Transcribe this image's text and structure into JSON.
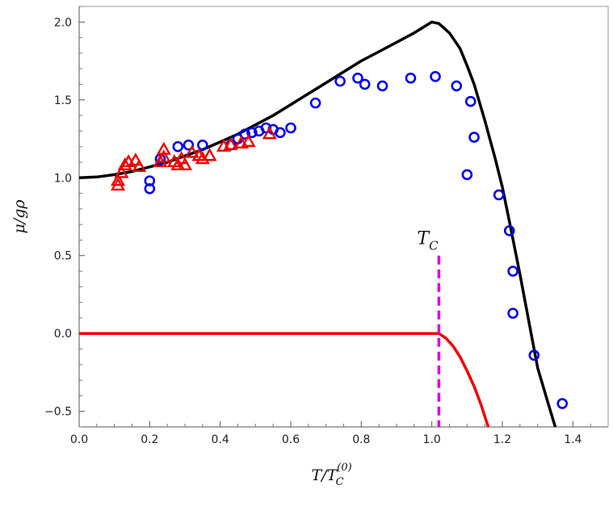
{
  "chart_data": {
    "type": "scatter",
    "title": "",
    "xlabel_main": "T/T",
    "xlabel_sub": "C",
    "xlabel_sup": "(0)",
    "ylabel": "μ/gρ",
    "xlim": [
      0.0,
      1.5
    ],
    "ylim": [
      -0.6,
      2.1
    ],
    "xticks": [
      0.0,
      0.2,
      0.4,
      0.6,
      0.8,
      1.0,
      1.2,
      1.4
    ],
    "xtick_labels": [
      "0.0",
      "0.2",
      "0.4",
      "0.6",
      "0.8",
      "1.0",
      "1.2",
      "1.4"
    ],
    "yticks": [
      -0.5,
      0.0,
      0.5,
      1.0,
      1.5,
      2.0
    ],
    "ytick_labels": [
      "−0.5",
      "0.0",
      "0.5",
      "1.0",
      "1.5",
      "2.0"
    ],
    "grid": false,
    "annotation": {
      "label_main": "T",
      "label_sub": "C",
      "x": 1.02,
      "y_from": -0.6,
      "y_to": 0.5,
      "color": "#e000e0"
    },
    "series": [
      {
        "kind": "line",
        "color": "#000000",
        "points": [
          [
            0.0,
            1.0
          ],
          [
            0.05,
            1.005
          ],
          [
            0.1,
            1.02
          ],
          [
            0.15,
            1.04
          ],
          [
            0.2,
            1.07
          ],
          [
            0.25,
            1.1
          ],
          [
            0.3,
            1.14
          ],
          [
            0.35,
            1.18
          ],
          [
            0.4,
            1.23
          ],
          [
            0.45,
            1.28
          ],
          [
            0.5,
            1.34
          ],
          [
            0.55,
            1.4
          ],
          [
            0.6,
            1.47
          ],
          [
            0.65,
            1.54
          ],
          [
            0.7,
            1.61
          ],
          [
            0.75,
            1.68
          ],
          [
            0.8,
            1.75
          ],
          [
            0.85,
            1.81
          ],
          [
            0.9,
            1.87
          ],
          [
            0.95,
            1.93
          ],
          [
            1.0,
            2.0
          ],
          [
            1.02,
            1.99
          ],
          [
            1.05,
            1.93
          ],
          [
            1.08,
            1.83
          ],
          [
            1.1,
            1.72
          ],
          [
            1.12,
            1.6
          ],
          [
            1.15,
            1.37
          ],
          [
            1.18,
            1.12
          ],
          [
            1.2,
            0.94
          ],
          [
            1.22,
            0.72
          ],
          [
            1.25,
            0.38
          ],
          [
            1.28,
            0.02
          ],
          [
            1.3,
            -0.22
          ],
          [
            1.33,
            -0.45
          ],
          [
            1.35,
            -0.6
          ]
        ]
      },
      {
        "kind": "line",
        "color": "#ee0000",
        "points": [
          [
            0.0,
            0.0
          ],
          [
            1.0,
            0.0
          ],
          [
            1.02,
            0.0
          ],
          [
            1.04,
            -0.03
          ],
          [
            1.06,
            -0.08
          ],
          [
            1.08,
            -0.15
          ],
          [
            1.1,
            -0.24
          ],
          [
            1.12,
            -0.34
          ],
          [
            1.14,
            -0.46
          ],
          [
            1.16,
            -0.6
          ]
        ]
      },
      {
        "kind": "markers",
        "marker": "circle",
        "color": "#0000ee",
        "points": [
          [
            0.2,
            0.93
          ],
          [
            0.2,
            0.98
          ],
          [
            0.23,
            1.12
          ],
          [
            0.28,
            1.2
          ],
          [
            0.31,
            1.21
          ],
          [
            0.35,
            1.21
          ],
          [
            0.43,
            1.21
          ],
          [
            0.45,
            1.25
          ],
          [
            0.47,
            1.28
          ],
          [
            0.49,
            1.29
          ],
          [
            0.51,
            1.3
          ],
          [
            0.53,
            1.32
          ],
          [
            0.55,
            1.31
          ],
          [
            0.57,
            1.29
          ],
          [
            0.6,
            1.32
          ],
          [
            0.67,
            1.48
          ],
          [
            0.74,
            1.62
          ],
          [
            0.79,
            1.64
          ],
          [
            0.81,
            1.6
          ],
          [
            0.86,
            1.59
          ],
          [
            0.94,
            1.64
          ],
          [
            1.01,
            1.65
          ],
          [
            1.07,
            1.59
          ],
          [
            1.1,
            1.02
          ],
          [
            1.11,
            1.49
          ],
          [
            1.12,
            1.26
          ],
          [
            1.19,
            0.89
          ],
          [
            1.22,
            0.66
          ],
          [
            1.23,
            0.4
          ],
          [
            1.23,
            0.13
          ],
          [
            1.29,
            -0.14
          ],
          [
            1.37,
            -0.45
          ]
        ]
      },
      {
        "kind": "markers",
        "marker": "triangle",
        "color": "#ee0000",
        "points": [
          [
            0.11,
            0.95
          ],
          [
            0.11,
            0.98
          ],
          [
            0.12,
            1.03
          ],
          [
            0.13,
            1.08
          ],
          [
            0.14,
            1.1
          ],
          [
            0.16,
            1.11
          ],
          [
            0.17,
            1.07
          ],
          [
            0.23,
            1.1
          ],
          [
            0.24,
            1.13
          ],
          [
            0.24,
            1.18
          ],
          [
            0.27,
            1.1
          ],
          [
            0.28,
            1.08
          ],
          [
            0.29,
            1.12
          ],
          [
            0.3,
            1.08
          ],
          [
            0.32,
            1.16
          ],
          [
            0.34,
            1.14
          ],
          [
            0.35,
            1.12
          ],
          [
            0.37,
            1.14
          ],
          [
            0.41,
            1.2
          ],
          [
            0.43,
            1.21
          ],
          [
            0.46,
            1.22
          ],
          [
            0.48,
            1.23
          ],
          [
            0.54,
            1.28
          ]
        ]
      }
    ]
  }
}
